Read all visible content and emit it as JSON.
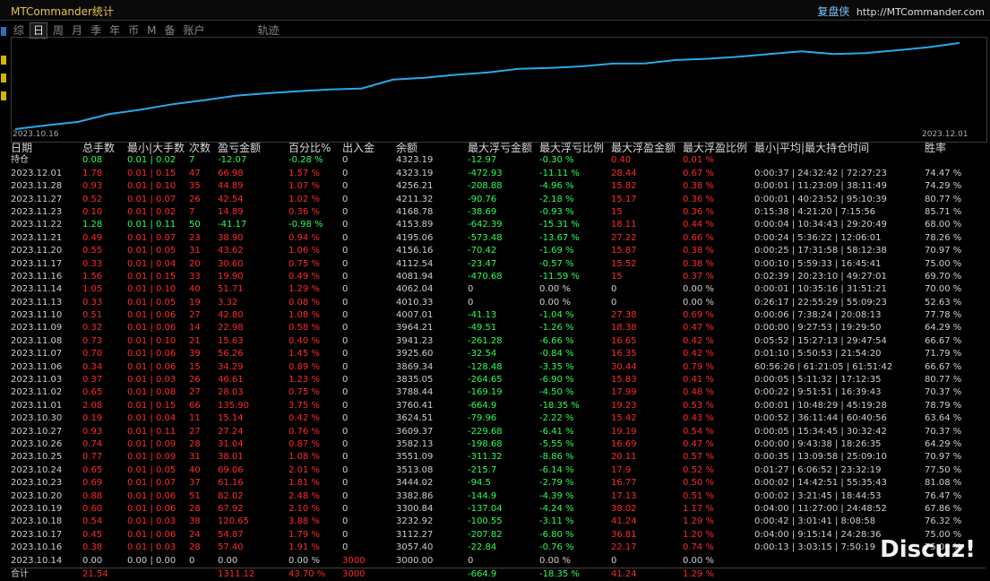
{
  "titlebar": {
    "app_name": "MTCommander统计",
    "brand": "复盘侠",
    "url": "http://MTCommander.com"
  },
  "tabs": [
    {
      "label": "综",
      "active": false
    },
    {
      "label": "日",
      "active": true
    },
    {
      "label": "周",
      "active": false
    },
    {
      "label": "月",
      "active": false
    },
    {
      "label": "季",
      "active": false
    },
    {
      "label": "年",
      "active": false
    },
    {
      "label": "币",
      "active": false
    },
    {
      "label": "M",
      "active": false
    },
    {
      "label": "备",
      "active": false
    },
    {
      "label": "账户",
      "active": false
    },
    {
      "label": "轨迹",
      "active": false
    }
  ],
  "chart_data": {
    "type": "line",
    "x_start_label": "2023.10.16",
    "x_end_label": "2023.12.01",
    "series_color": "#29a8e8",
    "x": [
      "2023.10.14",
      "2023.10.16",
      "2023.10.17",
      "2023.10.18",
      "2023.10.19",
      "2023.10.20",
      "2023.10.23",
      "2023.10.24",
      "2023.10.25",
      "2023.10.26",
      "2023.10.27",
      "2023.10.30",
      "2023.11.01",
      "2023.11.02",
      "2023.11.03",
      "2023.11.06",
      "2023.11.07",
      "2023.11.08",
      "2023.11.09",
      "2023.11.10",
      "2023.11.13",
      "2023.11.14",
      "2023.11.16",
      "2023.11.17",
      "2023.11.20",
      "2023.11.21",
      "2023.11.22",
      "2023.11.23",
      "2023.11.27",
      "2023.11.28",
      "2023.12.01"
    ],
    "values": [
      3000.0,
      3057.4,
      3112.27,
      3232.92,
      3300.84,
      3382.86,
      3444.02,
      3513.08,
      3551.09,
      3582.13,
      3609.37,
      3624.51,
      3760.41,
      3788.44,
      3835.05,
      3869.34,
      3925.6,
      3941.23,
      3964.21,
      4007.01,
      4010.33,
      4062.04,
      4081.94,
      4112.54,
      4156.16,
      4195.06,
      4153.89,
      4168.78,
      4211.32,
      4256.21,
      4323.19
    ],
    "ylim": [
      3000,
      4350
    ]
  },
  "table": {
    "headers": [
      "日期",
      "总手数",
      "最小|大手数",
      "次数",
      "盈亏金额",
      "百分比%",
      "出入金",
      "余额",
      "最大浮亏金额",
      "最大浮亏比例",
      "最大浮盈金额",
      "最大浮盈比例",
      "最小|平均|最大持仓时间",
      "胜率"
    ],
    "rows": [
      {
        "c": [
          "持仓",
          "0.08",
          "0.01 | 0.02",
          "7",
          "-12.07",
          "-0.28 %",
          "0",
          "4323.19",
          "-12.97",
          "-0.30 %",
          "0.40",
          "0.01 %",
          "",
          ""
        ],
        "k": [
          "wh",
          "green",
          "green",
          "green",
          "green",
          "green",
          "wh",
          "wh",
          "green",
          "green",
          "red",
          "red",
          "wh",
          "wh"
        ]
      },
      {
        "c": [
          "2023.12.01",
          "1.78",
          "0.01 | 0.15",
          "47",
          "66.98",
          "1.57 %",
          "0",
          "4323.19",
          "-472.93",
          "-11.11 %",
          "28.44",
          "0.67 %",
          "0:00:37 | 24:32:42 | 72:27:23",
          "74.47 %"
        ]
      },
      {
        "c": [
          "2023.11.28",
          "0.93",
          "0.01 | 0.10",
          "35",
          "44.89",
          "1.07 %",
          "0",
          "4256.21",
          "-208.88",
          "-4.96 %",
          "15.82",
          "0.38 %",
          "0:00:01 | 11:23:09 | 38:11:49",
          "74.29 %"
        ]
      },
      {
        "c": [
          "2023.11.27",
          "0.52",
          "0.01 | 0.07",
          "26",
          "42.54",
          "1.02 %",
          "0",
          "4211.32",
          "-90.76",
          "-2.18 %",
          "15.17",
          "0.36 %",
          "0:00:01 | 40:23:52 | 95:10:39",
          "80.77 %"
        ]
      },
      {
        "c": [
          "2023.11.23",
          "0.10",
          "0.01 | 0.02",
          "7",
          "14.89",
          "0.36 %",
          "0",
          "4168.78",
          "-38.69",
          "-0.93 %",
          "15",
          "0.36 %",
          "0:15:38 | 4:21:20 | 7:15:56",
          "85.71 %"
        ]
      },
      {
        "c": [
          "2023.11.22",
          "1.28",
          "0.01 | 0.11",
          "50",
          "-41.17",
          "-0.98 %",
          "0",
          "4153.89",
          "-642.39",
          "-15.31 %",
          "18.11",
          "0.44 %",
          "0:00:04 | 10:34:43 | 29:20:49",
          "68.00 %"
        ],
        "k": [
          "wh",
          "green",
          "green",
          "green",
          "green",
          "green",
          "wh",
          "wh",
          "green",
          "green",
          "red",
          "red",
          "wh",
          "wh"
        ]
      },
      {
        "c": [
          "2023.11.21",
          "0.49",
          "0.01 | 0.07",
          "23",
          "38.90",
          "0.94 %",
          "0",
          "4195.06",
          "-573.48",
          "-13.67 %",
          "27.22",
          "0.66 %",
          "0:00:24 | 5:36:22 | 12:06:01",
          "78.26 %"
        ]
      },
      {
        "c": [
          "2023.11.20",
          "0.55",
          "0.01 | 0.05",
          "31",
          "43.62",
          "1.06 %",
          "0",
          "4156.16",
          "-70.42",
          "-1.69 %",
          "15.87",
          "0.38 %",
          "0:00:25 | 17:31:58 | 58:12:38",
          "70.97 %"
        ]
      },
      {
        "c": [
          "2023.11.17",
          "0.33",
          "0.01 | 0.04",
          "20",
          "30.60",
          "0.75 %",
          "0",
          "4112.54",
          "-23.47",
          "-0.57 %",
          "15.52",
          "0.38 %",
          "0:00:10 | 5:59:33 | 16:45:41",
          "75.00 %"
        ]
      },
      {
        "c": [
          "2023.11.16",
          "1.56",
          "0.01 | 0.15",
          "33",
          "19.90",
          "0.49 %",
          "0",
          "4081.94",
          "-470.68",
          "-11.59 %",
          "15",
          "0.37 %",
          "0:02:39 | 20:23:10 | 49:27:01",
          "69.70 %"
        ]
      },
      {
        "c": [
          "2023.11.14",
          "1.05",
          "0.01 | 0.10",
          "40",
          "51.71",
          "1.29 %",
          "0",
          "4062.04",
          "0",
          "0.00 %",
          "0",
          "0.00 %",
          "0:00:01 | 10:35:16 | 31:51:21",
          "70.00 %"
        ],
        "k": [
          "wh",
          "red",
          "red",
          "red",
          "red",
          "red",
          "wh",
          "wh",
          "wh",
          "wh",
          "wh",
          "wh",
          "wh",
          "wh"
        ]
      },
      {
        "c": [
          "2023.11.13",
          "0.33",
          "0.01 | 0.05",
          "19",
          "3.32",
          "0.08 %",
          "0",
          "4010.33",
          "0",
          "0.00 %",
          "0",
          "0.00 %",
          "0:26:17 | 22:55:29 | 55:09:23",
          "52.63 %"
        ],
        "k": [
          "wh",
          "red",
          "red",
          "red",
          "red",
          "red",
          "wh",
          "wh",
          "wh",
          "wh",
          "wh",
          "wh",
          "wh",
          "wh"
        ]
      },
      {
        "c": [
          "2023.11.10",
          "0.51",
          "0.01 | 0.06",
          "27",
          "42.80",
          "1.08 %",
          "0",
          "4007.01",
          "-41.13",
          "-1.04 %",
          "27.38",
          "0.69 %",
          "0:00:06 | 7:38:24 | 20:08:13",
          "77.78 %"
        ]
      },
      {
        "c": [
          "2023.11.09",
          "0.32",
          "0.01 | 0.06",
          "14",
          "22.98",
          "0.58 %",
          "0",
          "3964.21",
          "-49.51",
          "-1.26 %",
          "18.38",
          "0.47 %",
          "0:00:00 | 9:27:53 | 19:29:50",
          "64.29 %"
        ]
      },
      {
        "c": [
          "2023.11.08",
          "0.73",
          "0.01 | 0.10",
          "21",
          "15.63",
          "0.40 %",
          "0",
          "3941.23",
          "-261.28",
          "-6.66 %",
          "16.65",
          "0.42 %",
          "0:05:52 | 15:27:13 | 29:47:54",
          "66.67 %"
        ]
      },
      {
        "c": [
          "2023.11.07",
          "0.70",
          "0.01 | 0.06",
          "39",
          "56.26",
          "1.45 %",
          "0",
          "3925.60",
          "-32.54",
          "-0.84 %",
          "16.35",
          "0.42 %",
          "0:01:10 | 5:50:53 | 21:54:20",
          "71.79 %"
        ]
      },
      {
        "c": [
          "2023.11.06",
          "0.34",
          "0.01 | 0.06",
          "15",
          "34.29",
          "0.89 %",
          "0",
          "3869.34",
          "-128.48",
          "-3.35 %",
          "30.44",
          "0.79 %",
          "60:56:26 | 61:21:05 | 61:51:42",
          "66.67 %"
        ]
      },
      {
        "c": [
          "2023.11.03",
          "0.37",
          "0.01 | 0.03",
          "26",
          "46.61",
          "1.23 %",
          "0",
          "3835.05",
          "-264.65",
          "-6.90 %",
          "15.83",
          "0.41 %",
          "0:00:05 | 5:11:32 | 17:12:35",
          "80.77 %"
        ]
      },
      {
        "c": [
          "2023.11.02",
          "0.65",
          "0.01 | 0.08",
          "27",
          "28.03",
          "0.75 %",
          "0",
          "3788.44",
          "-169.19",
          "-4.50 %",
          "17.99",
          "0.48 %",
          "0:00:22 | 9:51:51 | 16:39:43",
          "70.37 %"
        ]
      },
      {
        "c": [
          "2023.11.01",
          "2.08",
          "0.01 | 0.15",
          "66",
          "135.90",
          "3.75 %",
          "0",
          "3760.41",
          "-664.9",
          "-18.35 %",
          "19.23",
          "0.53 %",
          "0:00:01 | 10:48:29 | 45:19:28",
          "78.79 %"
        ]
      },
      {
        "c": [
          "2023.10.30",
          "0.19",
          "0.01 | 0.04",
          "11",
          "15.14",
          "0.42 %",
          "0",
          "3624.51",
          "-79.96",
          "-2.22 %",
          "15.42",
          "0.43 %",
          "0:00:52 | 36:11:44 | 60:40:56",
          "63.64 %"
        ]
      },
      {
        "c": [
          "2023.10.27",
          "0.93",
          "0.01 | 0.11",
          "27",
          "27.24",
          "0.76 %",
          "0",
          "3609.37",
          "-229.68",
          "-6.41 %",
          "19.19",
          "0.54 %",
          "0:00:05 | 15:34:45 | 30:32:42",
          "70.37 %"
        ]
      },
      {
        "c": [
          "2023.10.26",
          "0.74",
          "0.01 | 0.09",
          "28",
          "31.04",
          "0.87 %",
          "0",
          "3582.13",
          "-198.68",
          "-5.55 %",
          "16.69",
          "0.47 %",
          "0:00:00 | 9:43:38 | 18:26:35",
          "64.29 %"
        ]
      },
      {
        "c": [
          "2023.10.25",
          "0.77",
          "0.01 | 0.09",
          "31",
          "38.01",
          "1.08 %",
          "0",
          "3551.09",
          "-311.32",
          "-8.86 %",
          "20.11",
          "0.57 %",
          "0:00:35 | 13:09:58 | 25:09:10",
          "70.97 %"
        ]
      },
      {
        "c": [
          "2023.10.24",
          "0.65",
          "0.01 | 0.05",
          "40",
          "69.06",
          "2.01 %",
          "0",
          "3513.08",
          "-215.7",
          "-6.14 %",
          "17.9",
          "0.52 %",
          "0:01:27 | 6:06:52 | 23:32:19",
          "77.50 %"
        ]
      },
      {
        "c": [
          "2023.10.23",
          "0.69",
          "0.01 | 0.07",
          "37",
          "61.16",
          "1.81 %",
          "0",
          "3444.02",
          "-94.5",
          "-2.79 %",
          "16.77",
          "0.50 %",
          "0:00:02 | 14:42:51 | 55:35:43",
          "81.08 %"
        ]
      },
      {
        "c": [
          "2023.10.20",
          "0.88",
          "0.01 | 0.06",
          "51",
          "82.02",
          "2.48 %",
          "0",
          "3382.86",
          "-144.9",
          "-4.39 %",
          "17.13",
          "0.51 %",
          "0:00:02 | 3:21:45 | 18:44:53",
          "76.47 %"
        ]
      },
      {
        "c": [
          "2023.10.19",
          "0.60",
          "0.01 | 0.06",
          "28",
          "67.92",
          "2.10 %",
          "0",
          "3300.84",
          "-137.04",
          "-4.24 %",
          "38.02",
          "1.17 %",
          "0:04:00 | 11:27:00 | 24:48:52",
          "67.86 %"
        ]
      },
      {
        "c": [
          "2023.10.18",
          "0.54",
          "0.01 | 0.03",
          "38",
          "120.65",
          "3.88 %",
          "0",
          "3232.92",
          "-100.55",
          "-3.11 %",
          "41.24",
          "1.29 %",
          "0:00:42 | 3:01:41 | 8:08:58",
          "76.32 %"
        ]
      },
      {
        "c": [
          "2023.10.17",
          "0.45",
          "0.01 | 0.06",
          "24",
          "54.87",
          "1.79 %",
          "0",
          "3112.27",
          "-207.82",
          "-6.80 %",
          "36.81",
          "1.20 %",
          "0:04:00 | 9:15:14 | 24:28:36",
          "75.00 %"
        ]
      },
      {
        "c": [
          "2023.10.16",
          "0.38",
          "0.01 | 0.03",
          "28",
          "57.40",
          "1.91 %",
          "0",
          "3057.40",
          "-22.84",
          "-0.76 %",
          "22.17",
          "0.74 %",
          "0:00:13 | 3:03:15 | 7:50:19",
          "75.00 %"
        ]
      },
      {
        "c": [
          "2023.10.14",
          "0.00",
          "0.00 | 0.00",
          "0",
          "0.00",
          "0.00 %",
          "3000",
          "3000.00",
          "0",
          "0.00 %",
          "0",
          "0.00 %",
          "",
          ""
        ],
        "k": [
          "wh",
          "wh",
          "wh",
          "wh",
          "wh",
          "wh",
          "red",
          "wh",
          "wh",
          "wh",
          "wh",
          "wh",
          "wh",
          "wh"
        ]
      },
      {
        "c": [
          "合计",
          "21.54",
          "",
          "",
          "1311.12",
          "43.70 %",
          "3000",
          "",
          "-664.9",
          "-18.35 %",
          "41.24",
          "1.29 %",
          "",
          ""
        ],
        "k": [
          "wh",
          "red",
          "red",
          "red",
          "red",
          "red",
          "red",
          "wh",
          "green",
          "green",
          "red",
          "red",
          "wh",
          "wh"
        ],
        "total": true
      }
    ]
  },
  "watermark": "Discuz!"
}
